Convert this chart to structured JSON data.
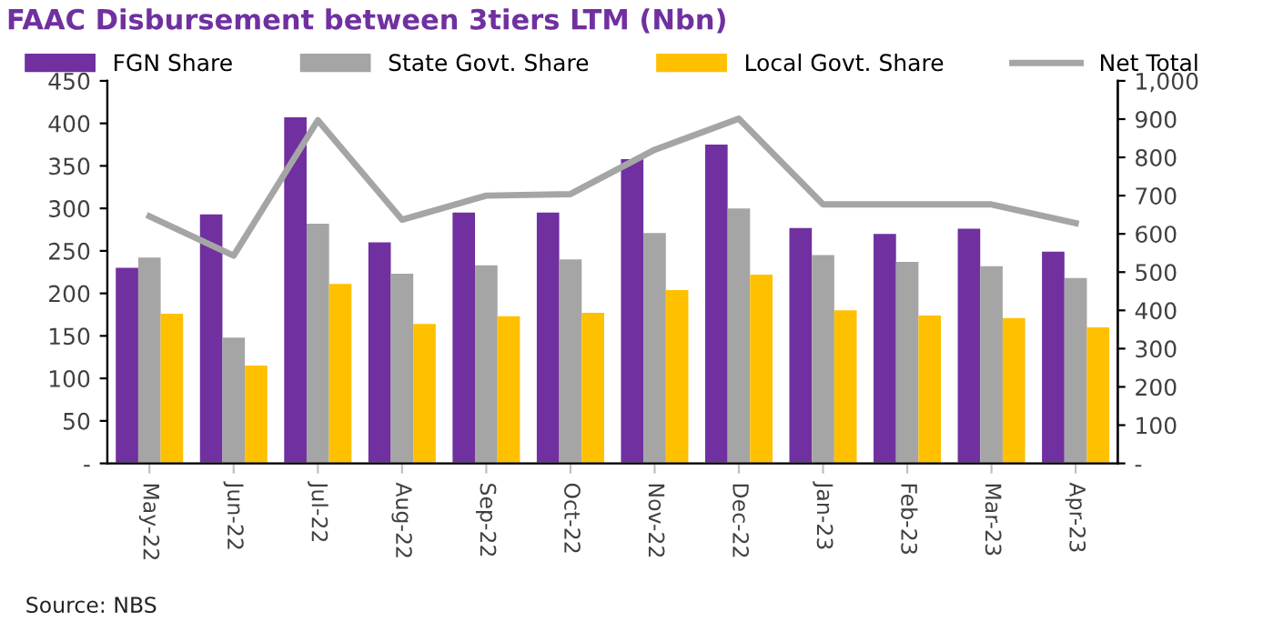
{
  "chart_data": {
    "type": "bar",
    "title": "FAAC Disbursement between 3tiers LTM (Nbn)",
    "categories": [
      "May-22",
      "Jun-22",
      "Jul-22",
      "Aug-22",
      "Sep-22",
      "Oct-22",
      "Nov-22",
      "Dec-22",
      "Jan-23",
      "Feb-23",
      "Mar-23",
      "Apr-23"
    ],
    "series": [
      {
        "name": "FGN Share",
        "color": "#7030a0",
        "values": [
          230,
          293,
          407,
          260,
          295,
          295,
          358,
          375,
          277,
          270,
          276,
          249
        ]
      },
      {
        "name": "State Govt. Share",
        "color": "#a5a5a5",
        "values": [
          242,
          148,
          282,
          223,
          233,
          240,
          271,
          300,
          245,
          237,
          232,
          218
        ]
      },
      {
        "name": "Local Govt. Share",
        "color": "#ffc000",
        "values": [
          176,
          115,
          211,
          164,
          173,
          177,
          204,
          222,
          180,
          174,
          171,
          160
        ]
      },
      {
        "name": "Net Total",
        "type": "line",
        "axis": "y2",
        "color": "#a5a5a5",
        "values": [
          646,
          543,
          897,
          637,
          700,
          704,
          820,
          901,
          677,
          677,
          677,
          628
        ]
      }
    ],
    "ylim": [
      0,
      450
    ],
    "yticks": [
      {
        "value": 0,
        "label": "-"
      },
      50,
      100,
      150,
      200,
      250,
      300,
      350,
      400,
      450
    ],
    "y2lim": [
      0,
      1000
    ],
    "y2ticks": [
      {
        "value": 0,
        "label": "-"
      },
      100,
      200,
      300,
      400,
      500,
      600,
      700,
      800,
      900,
      {
        "value": 1000,
        "label": "1,000"
      }
    ],
    "legend": "top",
    "grid": false,
    "annotations": [
      "Source: NBS"
    ]
  }
}
